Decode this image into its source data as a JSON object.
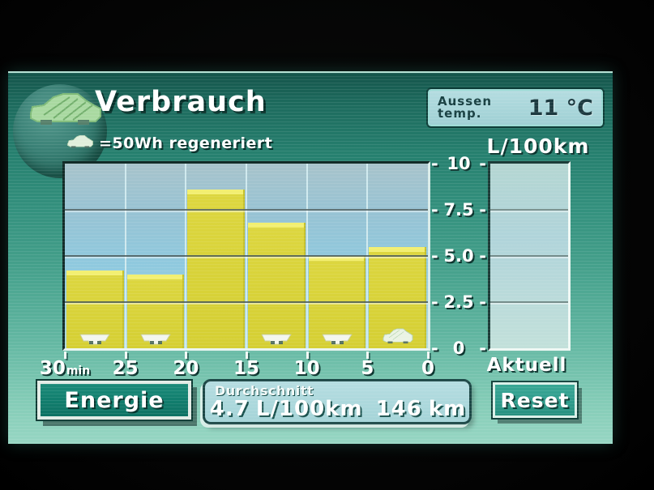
{
  "header": {
    "title": "Verbrauch",
    "legend": {
      "icon": "car-icon",
      "text": "=50Wh regeneriert"
    },
    "outside_temp": {
      "label_line1": "Aussen",
      "label_line2": "temp.",
      "value": "11 °C"
    },
    "axis_unit_label": "L/100km"
  },
  "chart_data": {
    "type": "bar",
    "title": "Verbrauch",
    "ylabel": "L/100km",
    "xlabel": "min",
    "ylim": [
      0,
      10
    ],
    "y_tick_labels": [
      "10",
      "7.5",
      "5.0",
      "2.5",
      "0"
    ],
    "y_tick_dash": "-",
    "x_tick_labels": [
      "30",
      "25",
      "20",
      "15",
      "10",
      "5",
      "0"
    ],
    "x_unit": "min",
    "categories": [
      "30-25 min",
      "25-20 min",
      "20-15 min",
      "15-10 min",
      "10-5 min",
      "5-0 min"
    ],
    "values": [
      4.2,
      4.0,
      8.6,
      6.8,
      5.0,
      5.5
    ],
    "regen_markers": [
      "partial",
      "partial",
      "none",
      "partial",
      "partial",
      "full"
    ],
    "grid": true,
    "legend_note": "each full car icon = 50Wh regenerated"
  },
  "current_gauge": {
    "label": "Aktuell",
    "value": null
  },
  "footer": {
    "energie_button_label": "Energie",
    "reset_button_label": "Reset",
    "average_panel": {
      "label": "Durchschnitt",
      "value": "4.7",
      "unit": "L/100km",
      "distance_value": "146",
      "distance_unit": "km"
    }
  },
  "colors": {
    "screen_top": "#14544a",
    "screen_bottom": "#97d6c3",
    "sky_top": "#a7c3cb",
    "sky_bottom": "#b2dcd8",
    "bar": "#d9d53b",
    "bar_cap": "#f2ef70",
    "energie_button_green": "#117e6e",
    "reset_button_green": "#2f9d8d",
    "average_panel_blue": "#abd7db",
    "temp_box_blue": "#a9d6da"
  }
}
